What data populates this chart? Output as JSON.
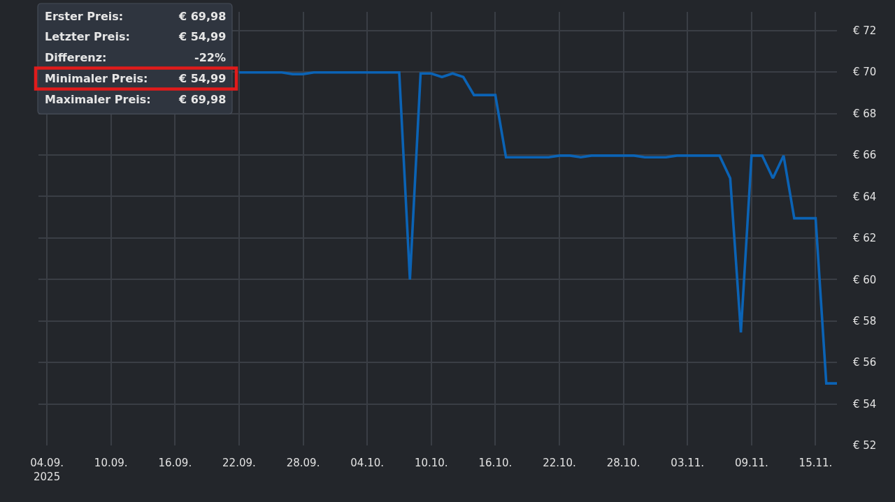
{
  "chart_data": {
    "type": "line",
    "color": "#0b63b5",
    "line_style": "solid",
    "grid": true,
    "x": [
      "2025-09-22",
      "2025-09-23",
      "2025-09-24",
      "2025-09-25",
      "2025-09-26",
      "2025-09-27",
      "2025-09-28",
      "2025-09-29",
      "2025-09-30",
      "2025-10-01",
      "2025-10-02",
      "2025-10-03",
      "2025-10-04",
      "2025-10-05",
      "2025-10-06",
      "2025-10-07",
      "2025-10-08",
      "2025-10-09",
      "2025-10-10",
      "2025-10-11",
      "2025-10-12",
      "2025-10-13",
      "2025-10-14",
      "2025-10-15",
      "2025-10-16",
      "2025-10-17",
      "2025-10-18",
      "2025-10-19",
      "2025-10-20",
      "2025-10-21",
      "2025-10-22",
      "2025-10-23",
      "2025-10-24",
      "2025-10-25",
      "2025-10-26",
      "2025-10-27",
      "2025-10-28",
      "2025-10-29",
      "2025-10-30",
      "2025-10-31",
      "2025-11-01",
      "2025-11-02",
      "2025-11-03",
      "2025-11-04",
      "2025-11-05",
      "2025-11-06",
      "2025-11-07",
      "2025-11-08",
      "2025-11-09",
      "2025-11-10",
      "2025-11-11",
      "2025-11-12",
      "2025-11-13",
      "2025-11-14",
      "2025-11-15",
      "2025-11-16",
      "2025-11-17"
    ],
    "values": [
      69.98,
      69.98,
      69.98,
      69.98,
      69.98,
      69.9,
      69.9,
      69.98,
      69.98,
      69.98,
      69.98,
      69.98,
      69.98,
      69.98,
      69.98,
      69.98,
      60.0,
      69.93,
      69.93,
      69.76,
      69.93,
      69.76,
      68.89,
      68.89,
      68.89,
      65.89,
      65.89,
      65.89,
      65.89,
      65.89,
      65.97,
      65.97,
      65.89,
      65.97,
      65.97,
      65.97,
      65.97,
      65.97,
      65.89,
      65.89,
      65.89,
      65.97,
      65.97,
      65.97,
      65.97,
      65.97,
      64.88,
      57.45,
      65.97,
      65.97,
      64.88,
      65.97,
      62.95,
      62.95,
      62.95,
      54.99,
      54.99
    ],
    "xlim": [
      "2025-09-03T05:00",
      "2025-11-17"
    ],
    "xticks": [
      {
        "value": "2025-09-04",
        "label": "04.09.\n2025"
      },
      {
        "value": "2025-09-10",
        "label": "10.09."
      },
      {
        "value": "2025-09-16",
        "label": "16.09."
      },
      {
        "value": "2025-09-22",
        "label": "22.09."
      },
      {
        "value": "2025-09-28",
        "label": "28.09."
      },
      {
        "value": "2025-10-04",
        "label": "04.10."
      },
      {
        "value": "2025-10-10",
        "label": "10.10."
      },
      {
        "value": "2025-10-16",
        "label": "16.10."
      },
      {
        "value": "2025-10-22",
        "label": "22.10."
      },
      {
        "value": "2025-10-28",
        "label": "28.10."
      },
      {
        "value": "2025-11-03",
        "label": "03.11."
      },
      {
        "value": "2025-11-09",
        "label": "09.11."
      },
      {
        "value": "2025-11-15",
        "label": "15.11."
      }
    ],
    "ylim": [
      52,
      72.9
    ],
    "yticks": [
      {
        "value": 52,
        "label": "€ 52"
      },
      {
        "value": 54,
        "label": "€ 54"
      },
      {
        "value": 56,
        "label": "€ 56"
      },
      {
        "value": 58,
        "label": "€ 58"
      },
      {
        "value": 60,
        "label": "€ 60"
      },
      {
        "value": 62,
        "label": "€ 62"
      },
      {
        "value": 64,
        "label": "€ 64"
      },
      {
        "value": 66,
        "label": "€ 66"
      },
      {
        "value": 68,
        "label": "€ 68"
      },
      {
        "value": 70,
        "label": "€ 70"
      },
      {
        "value": 72,
        "label": "€ 72"
      }
    ],
    "annotations": [
      "Erster Preis:",
      "€ 69,98",
      "Letzter Preis:",
      "€ 54,99",
      "Differenz:",
      "-22%",
      "Minimaler Preis:",
      "€ 54,99",
      "Maximaler Preis:",
      "€ 69,98"
    ]
  }
}
